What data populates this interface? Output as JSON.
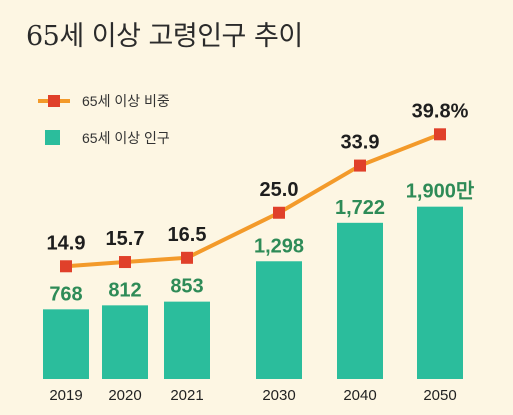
{
  "title": "65세 이상 고령인구 추이",
  "colors": {
    "background": "#fdf6e3",
    "bar": "#2bbd9c",
    "line": "#f39a2a",
    "marker": "#e0402a",
    "bar_label": "#2e8b57",
    "rate_label": "#1e1e1e"
  },
  "chart_data": {
    "type": "bar",
    "title": "65세 이상 고령인구 추이",
    "categories": [
      "2019",
      "2020",
      "2021",
      "2030",
      "2040",
      "2050"
    ],
    "series": [
      {
        "name": "65세 이상 인구",
        "type": "bar",
        "values": [
          768,
          812,
          853,
          1298,
          1722,
          1900
        ],
        "labels": [
          "768",
          "812",
          "853",
          "1,298",
          "1,722",
          "1,900만"
        ]
      },
      {
        "name": "65세 이상 비중",
        "type": "line",
        "values": [
          14.9,
          15.7,
          16.5,
          25.0,
          33.9,
          39.8
        ],
        "labels": [
          "14.9",
          "15.7",
          "16.5",
          "25.0",
          "33.9",
          "39.8%"
        ]
      }
    ],
    "legend": {
      "position": "top-left",
      "items": [
        "65세 이상 비중",
        "65세 이상 인구"
      ]
    },
    "xlabel": "",
    "ylabel": "",
    "grid": false
  }
}
